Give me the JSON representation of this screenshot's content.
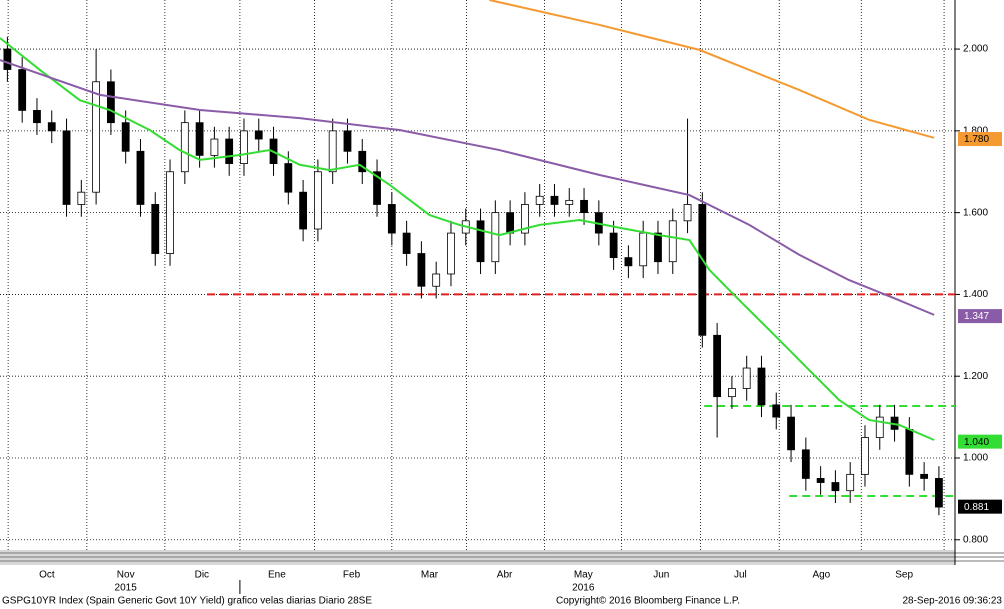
{
  "chart_data": {
    "type": "candlestick",
    "x": [
      0,
      4,
      8,
      12,
      16,
      20,
      24,
      28,
      32,
      36,
      40,
      44,
      48,
      52,
      56,
      60,
      64,
      68,
      72,
      76,
      80,
      84,
      88,
      92,
      96,
      100,
      104,
      108,
      112,
      116,
      120,
      124,
      128,
      132,
      136,
      140,
      144,
      148,
      152,
      156,
      160,
      164,
      168,
      172,
      176,
      180,
      184,
      188,
      192,
      196,
      200,
      204,
      208,
      212,
      216,
      220,
      224,
      228,
      232,
      236,
      240,
      244,
      248,
      252
    ],
    "open": [
      2.0,
      1.95,
      1.85,
      1.82,
      1.8,
      1.62,
      1.65,
      1.92,
      1.82,
      1.75,
      1.62,
      1.5,
      1.7,
      1.82,
      1.74,
      1.78,
      1.72,
      1.8,
      1.78,
      1.72,
      1.65,
      1.56,
      1.7,
      1.8,
      1.75,
      1.7,
      1.62,
      1.55,
      1.5,
      1.42,
      1.45,
      1.55,
      1.58,
      1.48,
      1.6,
      1.55,
      1.62,
      1.64,
      1.62,
      1.63,
      1.6,
      1.55,
      1.49,
      1.47,
      1.55,
      1.48,
      1.58,
      1.62,
      1.3,
      1.15,
      1.17,
      1.22,
      1.13,
      1.1,
      1.02,
      0.95,
      0.94,
      0.92,
      0.96,
      1.05,
      1.1,
      1.07,
      0.96,
      0.95
    ],
    "high": [
      2.03,
      1.98,
      1.88,
      1.85,
      1.83,
      1.68,
      2.0,
      1.95,
      1.85,
      1.78,
      1.65,
      1.73,
      1.85,
      1.85,
      1.81,
      1.81,
      1.83,
      1.83,
      1.81,
      1.75,
      1.68,
      1.73,
      1.83,
      1.83,
      1.78,
      1.73,
      1.65,
      1.58,
      1.53,
      1.48,
      1.58,
      1.61,
      1.61,
      1.63,
      1.63,
      1.65,
      1.67,
      1.67,
      1.66,
      1.66,
      1.63,
      1.58,
      1.52,
      1.58,
      1.58,
      1.61,
      1.83,
      1.65,
      1.33,
      1.2,
      1.25,
      1.25,
      1.16,
      1.13,
      1.05,
      0.98,
      0.97,
      0.99,
      1.08,
      1.13,
      1.13,
      1.1,
      0.99,
      0.98
    ],
    "low": [
      1.92,
      1.82,
      1.79,
      1.77,
      1.59,
      1.59,
      1.62,
      1.79,
      1.72,
      1.59,
      1.47,
      1.47,
      1.67,
      1.71,
      1.71,
      1.69,
      1.69,
      1.75,
      1.69,
      1.62,
      1.53,
      1.53,
      1.67,
      1.72,
      1.67,
      1.59,
      1.52,
      1.47,
      1.39,
      1.39,
      1.42,
      1.52,
      1.45,
      1.45,
      1.52,
      1.52,
      1.59,
      1.59,
      1.59,
      1.57,
      1.52,
      1.46,
      1.44,
      1.44,
      1.45,
      1.45,
      1.55,
      1.27,
      1.05,
      1.12,
      1.14,
      1.1,
      1.07,
      0.99,
      0.92,
      0.91,
      0.89,
      0.89,
      0.93,
      1.02,
      1.04,
      0.93,
      0.92,
      0.86
    ],
    "close": [
      1.95,
      1.85,
      1.82,
      1.8,
      1.62,
      1.65,
      1.92,
      1.82,
      1.75,
      1.62,
      1.5,
      1.7,
      1.82,
      1.74,
      1.78,
      1.72,
      1.8,
      1.78,
      1.72,
      1.65,
      1.56,
      1.7,
      1.8,
      1.75,
      1.7,
      1.62,
      1.55,
      1.5,
      1.42,
      1.45,
      1.55,
      1.58,
      1.48,
      1.6,
      1.55,
      1.62,
      1.64,
      1.62,
      1.63,
      1.6,
      1.55,
      1.49,
      1.47,
      1.55,
      1.48,
      1.58,
      1.62,
      1.3,
      1.15,
      1.17,
      1.22,
      1.13,
      1.1,
      1.02,
      0.95,
      0.94,
      0.92,
      0.96,
      1.05,
      1.1,
      1.07,
      0.96,
      0.95,
      0.88
    ],
    "up_color": "#ffffff",
    "down_color": "#000000",
    "xlim": [
      -2,
      255
    ],
    "xticks": [
      0.2,
      21.5,
      42.6,
      62.9,
      83.1,
      104,
      124.2,
      145.3,
      166.1,
      187.5,
      208.8,
      231,
      253.4
    ],
    "x_labels": [
      {
        "value": 10.7,
        "label": "Oct"
      },
      {
        "value": 32,
        "label": "Nov"
      },
      {
        "value": 52.6,
        "label": "Dic"
      },
      {
        "value": 72.9,
        "label": "Ene"
      },
      {
        "value": 93.1,
        "label": "Feb"
      },
      {
        "value": 114.2,
        "label": "Mar"
      },
      {
        "value": 134.5,
        "label": "Abr"
      },
      {
        "value": 155.8,
        "label": "May"
      },
      {
        "value": 176.9,
        "label": "Jun"
      },
      {
        "value": 198.3,
        "label": "Jul"
      },
      {
        "value": 220.2,
        "label": "Ago"
      },
      {
        "value": 242.6,
        "label": "Sep"
      }
    ],
    "year_labels": [
      {
        "value": 32,
        "label": "2015"
      },
      {
        "value": 155.8,
        "label": "2016"
      }
    ],
    "ylim": [
      0.775,
      2.12
    ],
    "yticks": [
      {
        "value": 0.8,
        "label": "0.800"
      },
      {
        "value": 1.0,
        "label": "1.000"
      },
      {
        "value": 1.2,
        "label": "1.200"
      },
      {
        "value": 1.4,
        "label": "1.400"
      },
      {
        "value": 1.6,
        "label": "1.600"
      },
      {
        "value": 1.8,
        "label": "1.800"
      },
      {
        "value": 2.0,
        "label": "2.000"
      }
    ],
    "grid": true,
    "moving_averages": [
      {
        "color": "#33dd33",
        "x": [
          -2,
          8.8,
          19.6,
          27.7,
          38.5,
          46.6,
          52.1,
          62.9,
          71,
          79.1,
          87.2,
          95.3,
          103.4,
          114.2,
          122.3,
          133.1,
          144,
          154.8,
          165.6,
          176.4,
          184.5,
          189.9,
          198,
          208.8,
          216.9,
          225,
          233.1,
          241.2,
          250.7
        ],
        "values": [
          2.027,
          1.949,
          1.875,
          1.851,
          1.802,
          1.753,
          1.729,
          1.741,
          1.753,
          1.717,
          1.704,
          1.717,
          1.668,
          1.594,
          1.57,
          1.545,
          1.57,
          1.582,
          1.563,
          1.545,
          1.533,
          1.46,
          1.386,
          1.289,
          1.215,
          1.142,
          1.093,
          1.081,
          1.044
        ]
      },
      {
        "color": "#8a5ca8",
        "x": [
          -2,
          25,
          52.1,
          79.1,
          106.1,
          133.1,
          160.2,
          184.5,
          200.7,
          214.2,
          227.7,
          241.2,
          250.7
        ],
        "values": [
          1.973,
          1.888,
          1.851,
          1.831,
          1.802,
          1.753,
          1.692,
          1.643,
          1.57,
          1.497,
          1.435,
          1.386,
          1.35
        ]
      },
      {
        "color": "#f59a30",
        "x": [
          130.4,
          160.2,
          187.2,
          214.2,
          233.1,
          250.7
        ],
        "values": [
          2.12,
          2.059,
          1.998,
          1.9,
          1.827,
          1.783
        ]
      }
    ],
    "levels": [
      {
        "value": 1.4,
        "x_start": 54,
        "color": "#e02020"
      },
      {
        "value": 1.127,
        "x_start": 188.5,
        "color": "#33dd33"
      },
      {
        "value": 0.907,
        "x_start": 211.5,
        "color": "#33dd33"
      }
    ],
    "last_values": [
      {
        "value": 1.78,
        "label": "1.780",
        "color": "#f59a30",
        "text_color": "#000000"
      },
      {
        "value": 1.347,
        "label": "1.347",
        "color": "#8a5ca8",
        "text_color": "#ffffff"
      },
      {
        "value": 1.04,
        "label": "1.040",
        "color": "#33dd33",
        "text_color": "#000000"
      },
      {
        "value": 0.881,
        "label": "0.881",
        "color": "#000000",
        "text_color": "#ffffff"
      }
    ]
  },
  "footer": {
    "left": "GSPG10YR Index (Spain Generic Govt 10Y Yield) grafico velas diarias  Diario 28SE",
    "center": "Copyright© 2016 Bloomberg Finance L.P.",
    "right": "28-Sep-2016 09:36:23"
  }
}
